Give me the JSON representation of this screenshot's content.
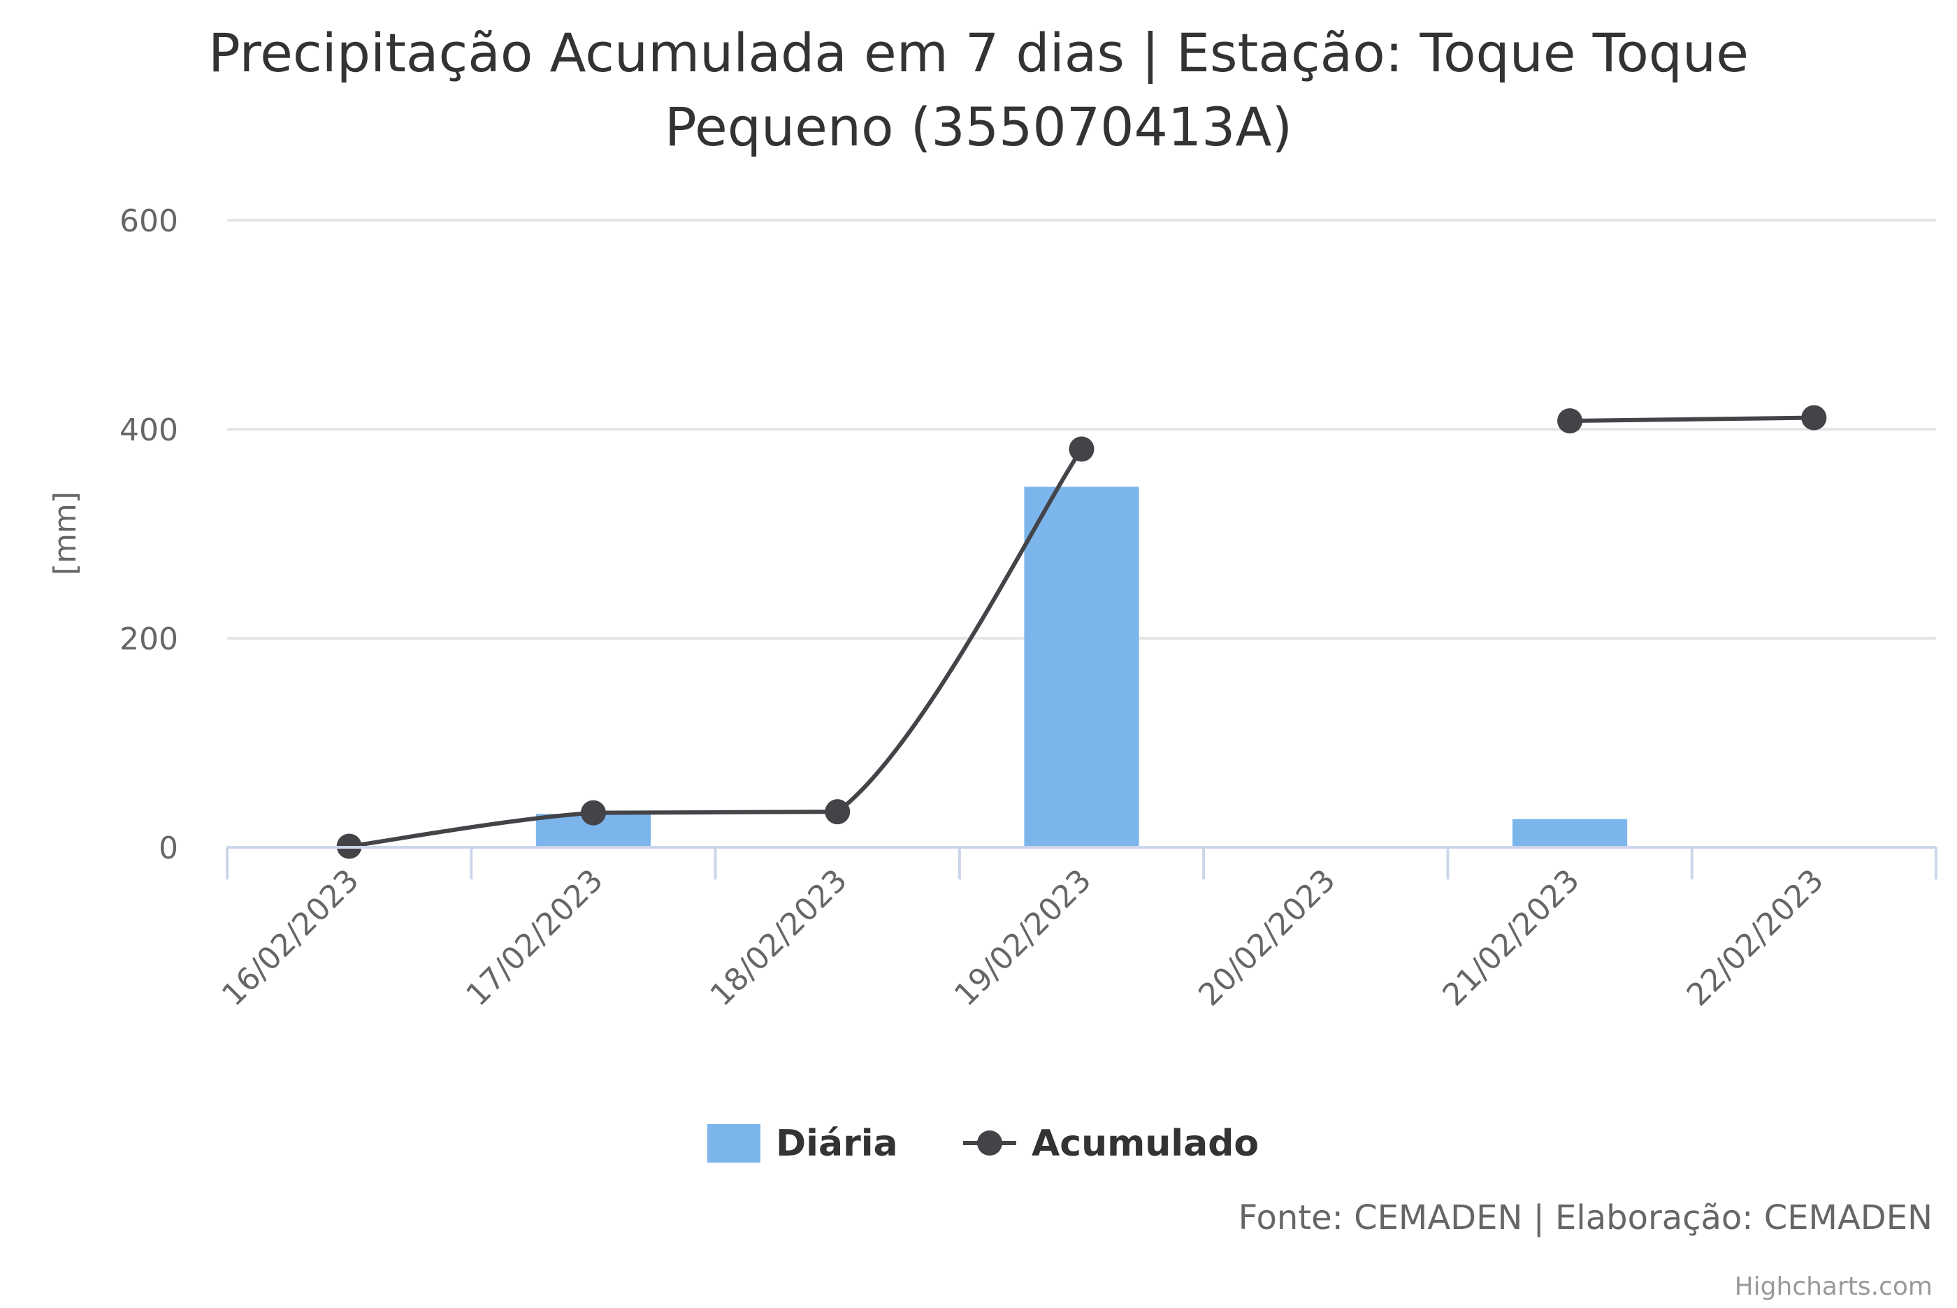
{
  "chart_data": {
    "type": "bar",
    "title_lines": [
      "Precipitação Acumulada em 7 dias | Estação: Toque Toque",
      "Pequeno (355070413A)"
    ],
    "ylabel": "[mm]",
    "xlabel": "",
    "ylim": [
      0,
      600
    ],
    "yticks": [
      0,
      200,
      400,
      600
    ],
    "categories": [
      "16/02/2023",
      "17/02/2023",
      "18/02/2023",
      "19/02/2023",
      "20/02/2023",
      "21/02/2023",
      "22/02/2023"
    ],
    "series": [
      {
        "name": "Diária",
        "type": "bar",
        "color": "#7cb5ec",
        "values": [
          0,
          32,
          0,
          345,
          0,
          27,
          0
        ]
      },
      {
        "name": "Acumulado",
        "type": "line",
        "color": "#434348",
        "values": [
          1,
          33,
          34,
          381,
          null,
          408,
          411
        ]
      }
    ],
    "grid": true,
    "legend_position": "bottom-center",
    "credits_text": "Fonte: CEMADEN | Elaboração: CEMADEN",
    "watermark": "Highcharts.com"
  }
}
